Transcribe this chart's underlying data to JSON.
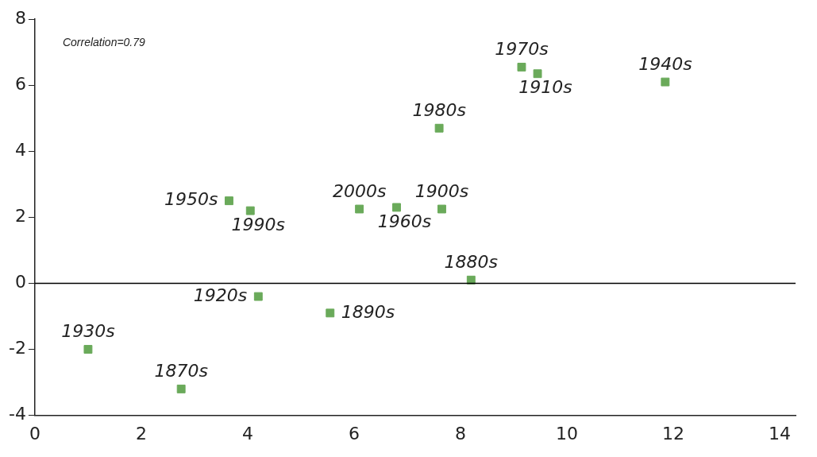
{
  "chart_data": {
    "type": "scatter",
    "x": [
      1.0,
      2.75,
      3.65,
      4.05,
      4.2,
      5.55,
      6.1,
      6.8,
      7.6,
      7.65,
      8.2,
      9.15,
      9.45,
      11.85
    ],
    "values": [
      -2.0,
      -3.2,
      2.5,
      2.2,
      -0.4,
      -0.9,
      2.25,
      2.3,
      4.7,
      2.25,
      0.1,
      6.55,
      6.35,
      6.1
    ],
    "color": "#6aaa5a",
    "marker": "square",
    "grid": false,
    "legend": false,
    "xlim": [
      0,
      14.3
    ],
    "xticks": [
      0,
      2,
      4,
      6,
      8,
      10,
      12,
      14
    ],
    "ylim": [
      -4,
      8
    ],
    "yticks": [
      -4,
      -2,
      0,
      2,
      4,
      6,
      8
    ],
    "ref_lines": [
      {
        "axis": "y",
        "value": 0,
        "color": "#000000"
      }
    ],
    "annotations": [
      "Correlation=0.79",
      {
        "text": "1930s",
        "x": 1.0,
        "y": -2.0
      },
      {
        "text": "1870s",
        "x": 2.75,
        "y": -3.2
      },
      {
        "text": "1950s",
        "x": 3.65,
        "y": 2.5
      },
      {
        "text": "1990s",
        "x": 4.05,
        "y": 2.2
      },
      {
        "text": "1920s",
        "x": 4.2,
        "y": -0.4
      },
      {
        "text": "1890s",
        "x": 5.55,
        "y": -0.9
      },
      {
        "text": "2000s",
        "x": 6.1,
        "y": 2.25
      },
      {
        "text": "1960s",
        "x": 6.8,
        "y": 2.3
      },
      {
        "text": "1980s",
        "x": 7.6,
        "y": 4.7
      },
      {
        "text": "1900s",
        "x": 7.65,
        "y": 2.25
      },
      {
        "text": "1880s",
        "x": 8.2,
        "y": 0.1
      },
      {
        "text": "1970s",
        "x": 9.15,
        "y": 6.55
      },
      {
        "text": "1910s",
        "x": 9.45,
        "y": 6.35
      },
      {
        "text": "1940s",
        "x": 11.85,
        "y": 6.1
      }
    ]
  }
}
